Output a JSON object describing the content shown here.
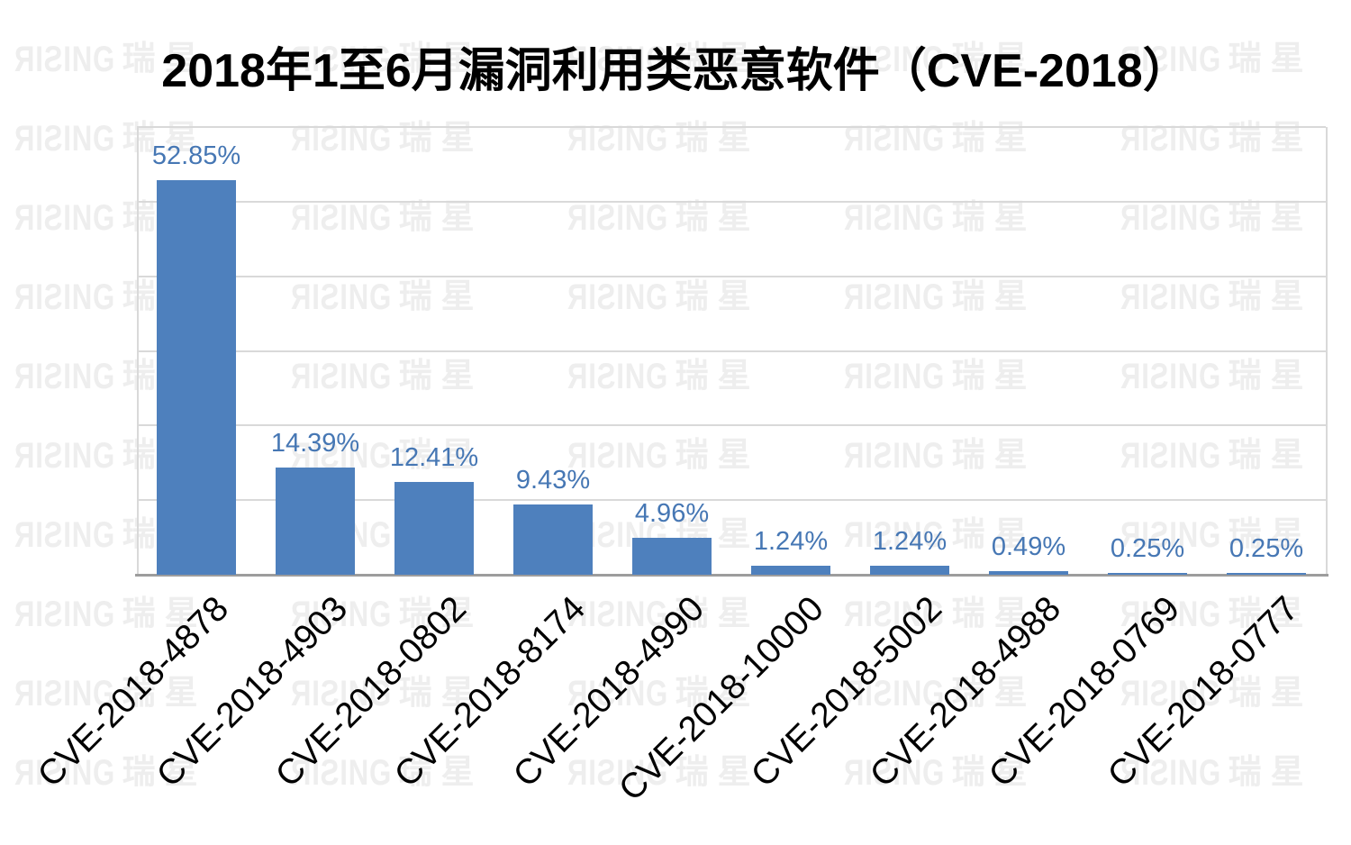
{
  "title": "2018年1至6月漏洞利用类恶意软件（CVE-2018）",
  "watermark": {
    "brand": "ЯIƧING",
    "cjk": "瑞星",
    "color": "#eeeeee"
  },
  "chart_data": {
    "type": "bar",
    "title": "2018年1至6月漏洞利用类恶意软件（CVE-2018）",
    "categories": [
      "CVE-2018-4878",
      "CVE-2018-4903",
      "CVE-2018-0802",
      "CVE-2018-8174",
      "CVE-2018-4990",
      "CVE-2018-10000",
      "CVE-2018-5002",
      "CVE-2018-4988",
      "CVE-2018-0769",
      "CVE-2018-0777"
    ],
    "values": [
      52.85,
      14.39,
      12.41,
      9.43,
      4.96,
      1.24,
      1.24,
      0.49,
      0.25,
      0.25
    ],
    "labels": [
      "52.85%",
      "14.39%",
      "12.41%",
      "9.43%",
      "4.96%",
      "1.24%",
      "1.24%",
      "0.49%",
      "0.25%",
      "0.25%"
    ],
    "xlabel": "",
    "ylabel": "",
    "ylim": [
      0,
      60
    ],
    "gridline_step": 10,
    "grid": true,
    "legend": false,
    "y_tick_labels_visible": false,
    "category_label_rotation_deg": -45,
    "colors": {
      "bar": "#4e80bd",
      "value_label": "#4677b4",
      "category_label": "#000000",
      "gridline": "#d9d9d9",
      "axis_line": "#9d9d9d",
      "title": "#000000",
      "background": "#ffffff"
    }
  }
}
